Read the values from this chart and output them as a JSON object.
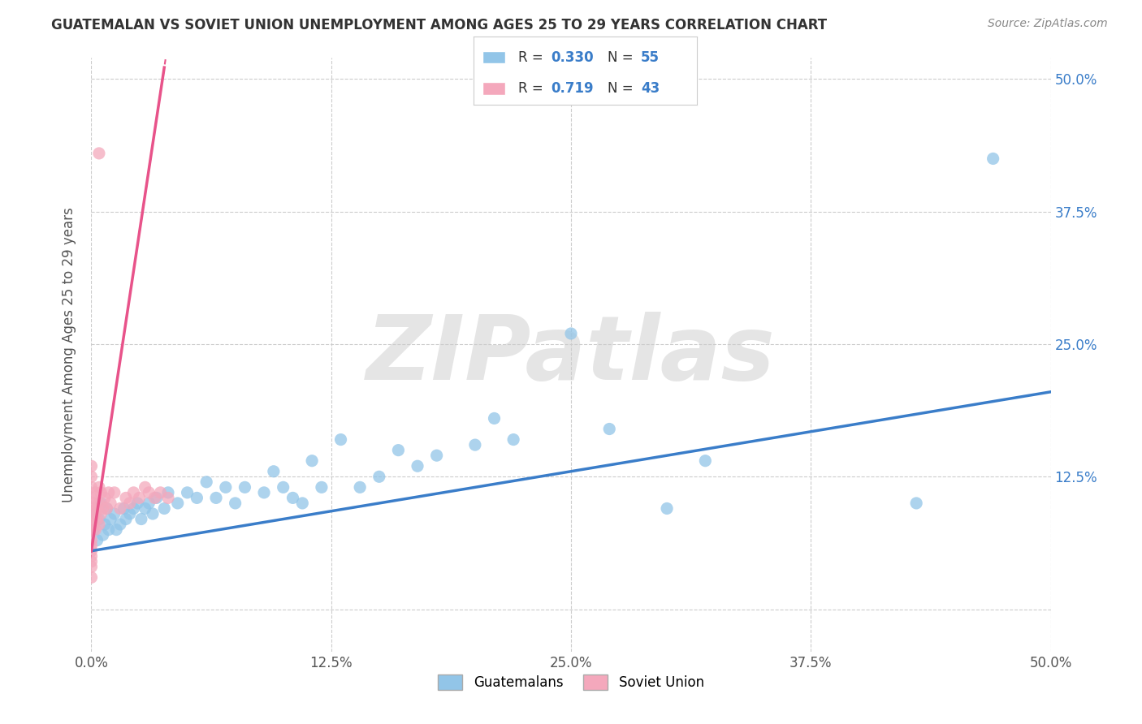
{
  "title": "GUATEMALAN VS SOVIET UNION UNEMPLOYMENT AMONG AGES 25 TO 29 YEARS CORRELATION CHART",
  "source": "Source: ZipAtlas.com",
  "ylabel": "Unemployment Among Ages 25 to 29 years",
  "xlim": [
    0.0,
    0.5
  ],
  "ylim": [
    -0.04,
    0.52
  ],
  "xtick_values": [
    0.0,
    0.125,
    0.25,
    0.375,
    0.5
  ],
  "xtick_labels": [
    "0.0%",
    "12.5%",
    "25.0%",
    "37.5%",
    "50.0%"
  ],
  "ytick_values": [
    0.125,
    0.25,
    0.375,
    0.5
  ],
  "ytick_labels": [
    "12.5%",
    "25.0%",
    "37.5%",
    "50.0%"
  ],
  "guatemalan_color": "#92C5E8",
  "soviet_color": "#F4A8BC",
  "guatemalan_line_color": "#3A7DC9",
  "soviet_line_color": "#E8538A",
  "legend_guatemalan_label": "Guatemalans",
  "legend_soviet_label": "Soviet Union",
  "R_guatemalan": 0.33,
  "N_guatemalan": 55,
  "R_soviet": 0.719,
  "N_soviet": 43,
  "watermark": "ZIPatlas",
  "background_color": "#FFFFFF",
  "grid_color": "#CCCCCC",
  "title_color": "#333333",
  "source_color": "#888888",
  "ytick_color": "#3A7DC9",
  "xtick_color": "#555555",
  "guat_line_start_y": 0.055,
  "guat_line_end_y": 0.205,
  "soviet_line_intercept": 0.055,
  "soviet_line_slope": 12.0
}
